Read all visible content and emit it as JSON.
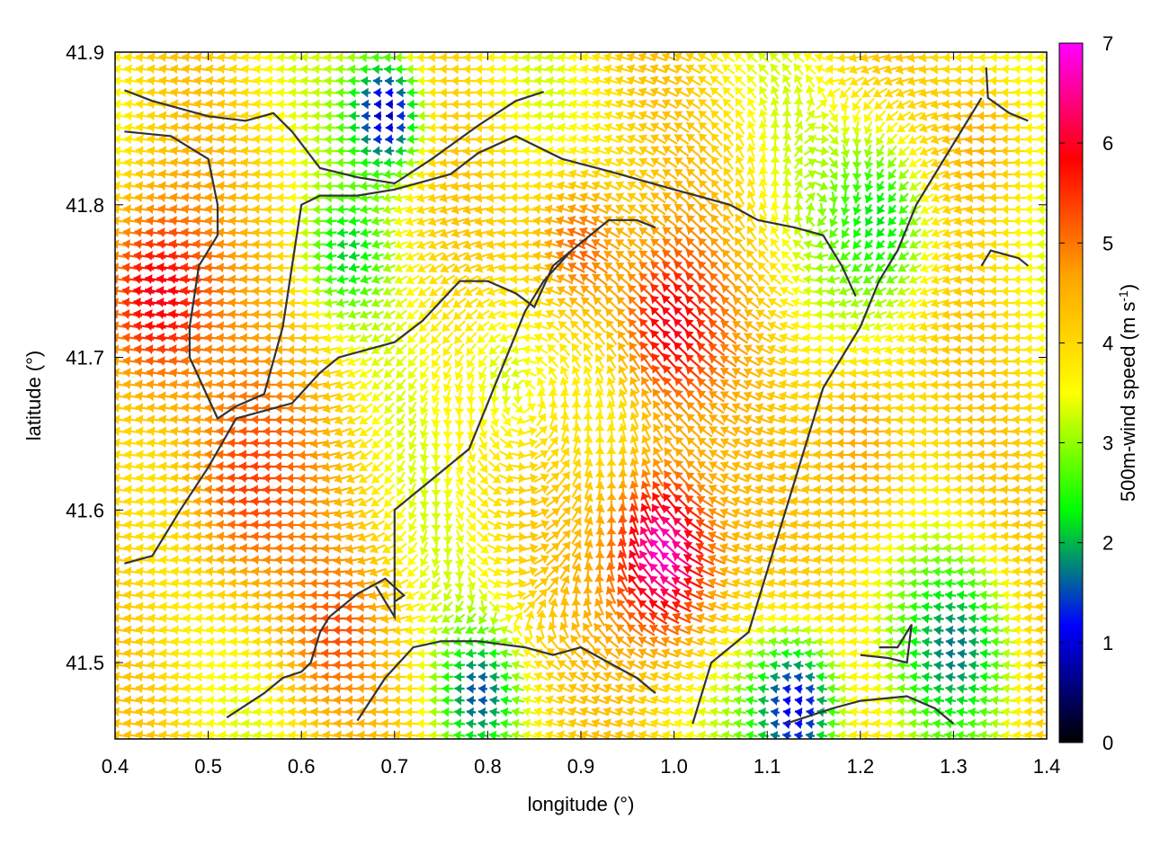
{
  "chart_data": {
    "type": "vector-field",
    "xlabel": "longitude (°)",
    "ylabel": "latitude (°)",
    "colorbar_label_main": "500m-wind speed (m s",
    "colorbar_label_sup": "-1",
    "colorbar_label_end": ")",
    "xlim": [
      0.4,
      1.4
    ],
    "ylim": [
      41.45,
      41.9
    ],
    "x_ticks": [
      0.4,
      0.5,
      0.6,
      0.7,
      0.8,
      0.9,
      1.0,
      1.1,
      1.2,
      1.3,
      1.4
    ],
    "x_tick_labels": [
      "0.4",
      "0.5",
      "0.6",
      "0.7",
      "0.8",
      "0.9",
      "1.0",
      "1.1",
      "1.2",
      "1.3",
      "1.4"
    ],
    "y_ticks": [
      41.5,
      41.6,
      41.7,
      41.8,
      41.9
    ],
    "y_tick_labels": [
      "41.5",
      "41.6",
      "41.7",
      "41.8",
      "41.9"
    ],
    "colorbar_range": [
      0,
      7
    ],
    "colorbar_ticks": [
      0,
      1,
      2,
      3,
      4,
      5,
      6,
      7
    ],
    "colorbar_tick_labels": [
      "0",
      "1",
      "2",
      "3",
      "4",
      "5",
      "6",
      "7"
    ],
    "colorscale": [
      "#000000",
      "#0000ff",
      "#00ff00",
      "#ffff00",
      "#ffa500",
      "#ff0000",
      "#ff00ff"
    ],
    "contour_color": "#333333",
    "speed_regions": [
      {
        "lon": 0.99,
        "lat": 41.57,
        "speed": 6.8,
        "radius": 0.06
      },
      {
        "lon": 1.0,
        "lat": 41.72,
        "speed": 6.0,
        "radius": 0.06
      },
      {
        "lon": 0.9,
        "lat": 41.77,
        "speed": 5.2,
        "radius": 0.05
      },
      {
        "lon": 0.45,
        "lat": 41.74,
        "speed": 6.0,
        "radius": 0.07
      },
      {
        "lon": 0.55,
        "lat": 41.62,
        "speed": 5.4,
        "radius": 0.08
      },
      {
        "lon": 0.64,
        "lat": 41.52,
        "speed": 5.3,
        "radius": 0.05
      },
      {
        "lon": 0.69,
        "lat": 41.86,
        "speed": 0.8,
        "radius": 0.04
      },
      {
        "lon": 0.65,
        "lat": 41.77,
        "speed": 2.1,
        "radius": 0.04
      },
      {
        "lon": 0.79,
        "lat": 41.48,
        "speed": 1.5,
        "radius": 0.04
      },
      {
        "lon": 1.13,
        "lat": 41.47,
        "speed": 1.0,
        "radius": 0.05
      },
      {
        "lon": 1.3,
        "lat": 41.51,
        "speed": 1.7,
        "radius": 0.06
      },
      {
        "lon": 1.22,
        "lat": 41.79,
        "speed": 2.2,
        "radius": 0.06
      },
      {
        "lon": 0.82,
        "lat": 41.69,
        "speed": 3.3,
        "radius": 0.06
      },
      {
        "lon": 1.2,
        "lat": 41.64,
        "speed": 4.6,
        "radius": 0.06
      },
      {
        "lon": 1.33,
        "lat": 41.84,
        "speed": 4.5,
        "radius": 0.05
      }
    ],
    "rotation_centers": [
      {
        "lon": 0.84,
        "lat": 41.68,
        "strength": 1.0
      },
      {
        "lon": 1.15,
        "lat": 41.78,
        "strength": -0.4
      }
    ],
    "coastlines": [
      [
        [
          0.41,
          41.875
        ],
        [
          0.44,
          41.868
        ],
        [
          0.5,
          41.858
        ],
        [
          0.54,
          41.855
        ],
        [
          0.57,
          41.86
        ],
        [
          0.59,
          41.848
        ],
        [
          0.62,
          41.824
        ],
        [
          0.66,
          41.818
        ],
        [
          0.7,
          41.814
        ],
        [
          0.74,
          41.83
        ],
        [
          0.79,
          41.852
        ],
        [
          0.83,
          41.868
        ],
        [
          0.86,
          41.874
        ]
      ],
      [
        [
          0.41,
          41.848
        ],
        [
          0.46,
          41.845
        ],
        [
          0.5,
          41.83
        ],
        [
          0.51,
          41.8
        ],
        [
          0.51,
          41.78
        ],
        [
          0.49,
          41.76
        ],
        [
          0.48,
          41.72
        ],
        [
          0.48,
          41.7
        ],
        [
          0.51,
          41.66
        ],
        [
          0.53,
          41.668
        ],
        [
          0.56,
          41.676
        ],
        [
          0.58,
          41.72
        ],
        [
          0.59,
          41.76
        ],
        [
          0.6,
          41.8
        ],
        [
          0.62,
          41.806
        ],
        [
          0.66,
          41.806
        ],
        [
          0.7,
          41.81
        ],
        [
          0.76,
          41.82
        ],
        [
          0.79,
          41.834
        ],
        [
          0.83,
          41.845
        ],
        [
          0.88,
          41.83
        ],
        [
          0.93,
          41.822
        ],
        [
          1.0,
          41.81
        ],
        [
          1.06,
          41.8
        ],
        [
          1.09,
          41.79
        ],
        [
          1.13,
          41.785
        ],
        [
          1.16,
          41.78
        ],
        [
          1.18,
          41.76
        ],
        [
          1.195,
          41.74
        ]
      ],
      [
        [
          0.41,
          41.565
        ],
        [
          0.44,
          41.57
        ],
        [
          0.47,
          41.6
        ],
        [
          0.5,
          41.628
        ],
        [
          0.53,
          41.66
        ],
        [
          0.59,
          41.67
        ],
        [
          0.62,
          41.69
        ],
        [
          0.64,
          41.7
        ],
        [
          0.67,
          41.705
        ],
        [
          0.7,
          41.71
        ],
        [
          0.73,
          41.724
        ],
        [
          0.77,
          41.75
        ],
        [
          0.8,
          41.75
        ],
        [
          0.83,
          41.742
        ],
        [
          0.85,
          41.733
        ],
        [
          0.87,
          41.76
        ],
        [
          0.91,
          41.78
        ],
        [
          0.93,
          41.79
        ],
        [
          0.96,
          41.79
        ],
        [
          0.98,
          41.785
        ]
      ],
      [
        [
          0.52,
          41.464
        ],
        [
          0.56,
          41.48
        ],
        [
          0.58,
          41.49
        ],
        [
          0.6,
          41.494
        ],
        [
          0.61,
          41.5
        ],
        [
          0.62,
          41.52
        ],
        [
          0.63,
          41.53
        ],
        [
          0.66,
          41.545
        ],
        [
          0.69,
          41.555
        ],
        [
          0.71,
          41.544
        ],
        [
          0.7,
          41.54
        ],
        [
          0.7,
          41.53
        ],
        [
          0.7,
          41.53
        ],
        [
          0.68,
          41.55
        ]
      ],
      [
        [
          0.66,
          41.462
        ],
        [
          0.69,
          41.49
        ],
        [
          0.72,
          41.51
        ],
        [
          0.75,
          41.514
        ],
        [
          0.79,
          41.514
        ],
        [
          0.84,
          41.51
        ],
        [
          0.87,
          41.505
        ],
        [
          0.9,
          41.51
        ],
        [
          0.93,
          41.5
        ],
        [
          0.96,
          41.49
        ],
        [
          0.98,
          41.48
        ]
      ],
      [
        [
          0.7,
          41.54
        ],
        [
          0.7,
          41.6
        ],
        [
          0.74,
          41.62
        ],
        [
          0.78,
          41.64
        ],
        [
          0.8,
          41.67
        ],
        [
          0.82,
          41.7
        ],
        [
          0.84,
          41.73
        ],
        [
          0.86,
          41.75
        ],
        [
          0.89,
          41.77
        ],
        [
          0.91,
          41.78
        ]
      ],
      [
        [
          1.02,
          41.46
        ],
        [
          1.04,
          41.5
        ],
        [
          1.08,
          41.52
        ],
        [
          1.1,
          41.56
        ],
        [
          1.12,
          41.6
        ],
        [
          1.14,
          41.64
        ],
        [
          1.16,
          41.68
        ],
        [
          1.2,
          41.72
        ],
        [
          1.22,
          41.75
        ],
        [
          1.24,
          41.77
        ],
        [
          1.26,
          41.8
        ],
        [
          1.29,
          41.83
        ],
        [
          1.33,
          41.87
        ]
      ],
      [
        [
          1.12,
          41.46
        ],
        [
          1.17,
          41.47
        ],
        [
          1.2,
          41.475
        ],
        [
          1.25,
          41.478
        ],
        [
          1.28,
          41.47
        ],
        [
          1.3,
          41.46
        ]
      ],
      [
        [
          1.2,
          41.505
        ],
        [
          1.23,
          41.503
        ],
        [
          1.25,
          41.5
        ],
        [
          1.255,
          41.525
        ],
        [
          1.24,
          41.51
        ],
        [
          1.22,
          41.51
        ]
      ],
      [
        [
          1.335,
          41.89
        ],
        [
          1.337,
          41.87
        ],
        [
          1.36,
          41.86
        ],
        [
          1.38,
          41.855
        ]
      ],
      [
        [
          1.33,
          41.76
        ],
        [
          1.34,
          41.77
        ],
        [
          1.37,
          41.765
        ],
        [
          1.38,
          41.76
        ]
      ]
    ]
  }
}
